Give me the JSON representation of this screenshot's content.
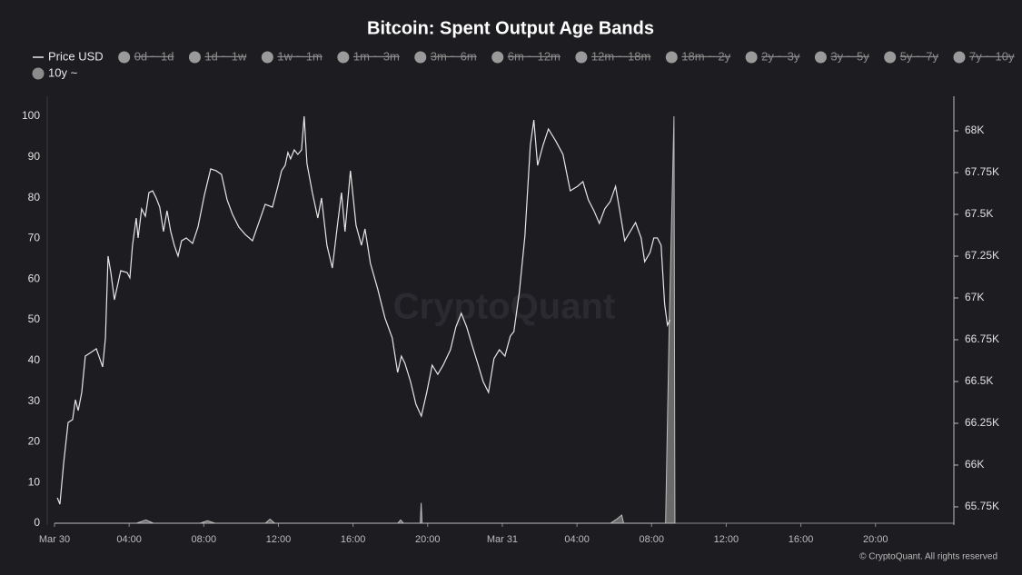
{
  "chart_data": {
    "type": "line",
    "title": "Bitcoin: Spent Output Age Bands",
    "watermark": "CryptoQuant",
    "credit": "© CryptoQuant. All rights reserved",
    "hidden_series": [
      "0d ~ 1d",
      "1d ~ 1w",
      "1w ~ 1m",
      "1m ~ 3m",
      "3m ~ 6m",
      "6m ~ 12m",
      "12m ~ 18m",
      "18m ~ 2y",
      "2y ~ 3y",
      "3y ~ 5y",
      "5y ~ 7y",
      "7y ~ 10y"
    ],
    "xlim": [
      0,
      48.2
    ],
    "xticks": [
      {
        "value": 0,
        "label": "Mar 30"
      },
      {
        "value": 4,
        "label": "04:00"
      },
      {
        "value": 8,
        "label": "08:00"
      },
      {
        "value": 12,
        "label": "12:00"
      },
      {
        "value": 16,
        "label": "16:00"
      },
      {
        "value": 20,
        "label": "20:00"
      },
      {
        "value": 24,
        "label": "Mar 31"
      },
      {
        "value": 28,
        "label": "04:00"
      },
      {
        "value": 32,
        "label": "08:00"
      },
      {
        "value": 36,
        "label": "12:00"
      },
      {
        "value": 40,
        "label": "16:00"
      },
      {
        "value": 44,
        "label": "20:00"
      }
    ],
    "ylim": [
      0,
      100
    ],
    "yticks": [
      0,
      10,
      20,
      30,
      40,
      50,
      60,
      70,
      80,
      90,
      100
    ],
    "y2lim": [
      65652,
      68087
    ],
    "y2ticks": [
      {
        "value": 65750,
        "label": "65.75K"
      },
      {
        "value": 66000,
        "label": "66K"
      },
      {
        "value": 66250,
        "label": "66.25K"
      },
      {
        "value": 66500,
        "label": "66.5K"
      },
      {
        "value": 66750,
        "label": "66.75K"
      },
      {
        "value": 67000,
        "label": "67K"
      },
      {
        "value": 67250,
        "label": "67.25K"
      },
      {
        "value": 67500,
        "label": "67.5K"
      },
      {
        "value": 67750,
        "label": "67.75K"
      },
      {
        "value": 68000,
        "label": "68K"
      }
    ],
    "series": [
      {
        "name": "Price USD",
        "color": "#e6e6e6",
        "axis": "y2",
        "kind": "line",
        "x": [
          0.15,
          0.29,
          0.49,
          0.73,
          0.97,
          1.12,
          1.27,
          1.46,
          1.65,
          1.95,
          2.24,
          2.43,
          2.58,
          2.73,
          2.87,
          3.02,
          3.21,
          3.55,
          3.89,
          4.04,
          4.18,
          4.38,
          4.48,
          4.67,
          4.87,
          5.06,
          5.26,
          5.45,
          5.64,
          5.84,
          6.03,
          6.23,
          6.42,
          6.62,
          6.81,
          7.06,
          7.4,
          7.69,
          8.03,
          8.37,
          8.66,
          8.95,
          9.25,
          9.54,
          9.88,
          10.22,
          10.61,
          10.95,
          11.29,
          11.68,
          11.97,
          12.17,
          12.36,
          12.51,
          12.65,
          12.85,
          13.04,
          13.24,
          13.38,
          13.53,
          13.82,
          14.11,
          14.31,
          14.6,
          14.89,
          15.18,
          15.38,
          15.57,
          15.86,
          16.16,
          16.45,
          16.64,
          16.93,
          17.32,
          17.71,
          18.1,
          18.39,
          18.59,
          18.78,
          19.08,
          19.37,
          19.66,
          19.95,
          20.24,
          20.54,
          20.83,
          21.22,
          21.51,
          21.8,
          22.09,
          22.38,
          22.68,
          22.97,
          23.26,
          23.55,
          23.84,
          24.14,
          24.43,
          24.62,
          24.91,
          25.21,
          25.5,
          25.69,
          25.89,
          26.18,
          26.47,
          26.86,
          27.25,
          27.64,
          28.03,
          28.32,
          28.61,
          28.91,
          29.2,
          29.49,
          29.78,
          30.07,
          30.36,
          30.56,
          30.85,
          31.14,
          31.44,
          31.63,
          31.92,
          32.12,
          32.31,
          32.51,
          32.7,
          32.85,
          32.99
        ],
        "values": [
          65804,
          65766,
          66011,
          66255,
          66272,
          66391,
          66326,
          66435,
          66652,
          66674,
          66696,
          66636,
          66587,
          66761,
          67250,
          67152,
          66989,
          67163,
          67152,
          67120,
          67315,
          67478,
          67359,
          67533,
          67489,
          67630,
          67641,
          67598,
          67543,
          67397,
          67522,
          67397,
          67315,
          67250,
          67342,
          67359,
          67326,
          67424,
          67614,
          67772,
          67761,
          67739,
          67587,
          67500,
          67424,
          67380,
          67342,
          67451,
          67560,
          67543,
          67668,
          67761,
          67793,
          67870,
          67832,
          67886,
          67859,
          67886,
          68087,
          67804,
          67630,
          67478,
          67598,
          67315,
          67179,
          67451,
          67630,
          67397,
          67761,
          67435,
          67315,
          67413,
          67207,
          67054,
          66880,
          66761,
          66554,
          66652,
          66609,
          66500,
          66364,
          66293,
          66435,
          66598,
          66543,
          66598,
          66690,
          66826,
          66908,
          66826,
          66717,
          66609,
          66500,
          66435,
          66636,
          66690,
          66652,
          66772,
          66799,
          67033,
          67370,
          67913,
          68065,
          67793,
          67913,
          68011,
          67940,
          67859,
          67641,
          67668,
          67696,
          67587,
          67522,
          67446,
          67533,
          67576,
          67668,
          67478,
          67342,
          67397,
          67451,
          67359,
          67217,
          67272,
          67359,
          67359,
          67315,
          66962,
          66837,
          66870
        ]
      },
      {
        "name": "10y ~",
        "color": "#8c8c8c",
        "kind": "area",
        "x": [
          0,
          4.4,
          4.9,
          5.3,
          7.8,
          8.2,
          8.6,
          11.3,
          11.55,
          11.8,
          18.4,
          18.55,
          18.7,
          19.6,
          19.65,
          19.7,
          29.8,
          30.1,
          30.4,
          30.5,
          32.75,
          32.95,
          33.2,
          33.25
        ],
        "values": [
          0,
          0,
          0.8,
          0,
          0,
          0.6,
          0,
          0,
          1,
          0,
          0,
          0.8,
          0,
          0,
          5,
          0,
          0,
          0.9,
          2,
          0,
          0,
          50,
          100,
          0
        ]
      }
    ]
  }
}
